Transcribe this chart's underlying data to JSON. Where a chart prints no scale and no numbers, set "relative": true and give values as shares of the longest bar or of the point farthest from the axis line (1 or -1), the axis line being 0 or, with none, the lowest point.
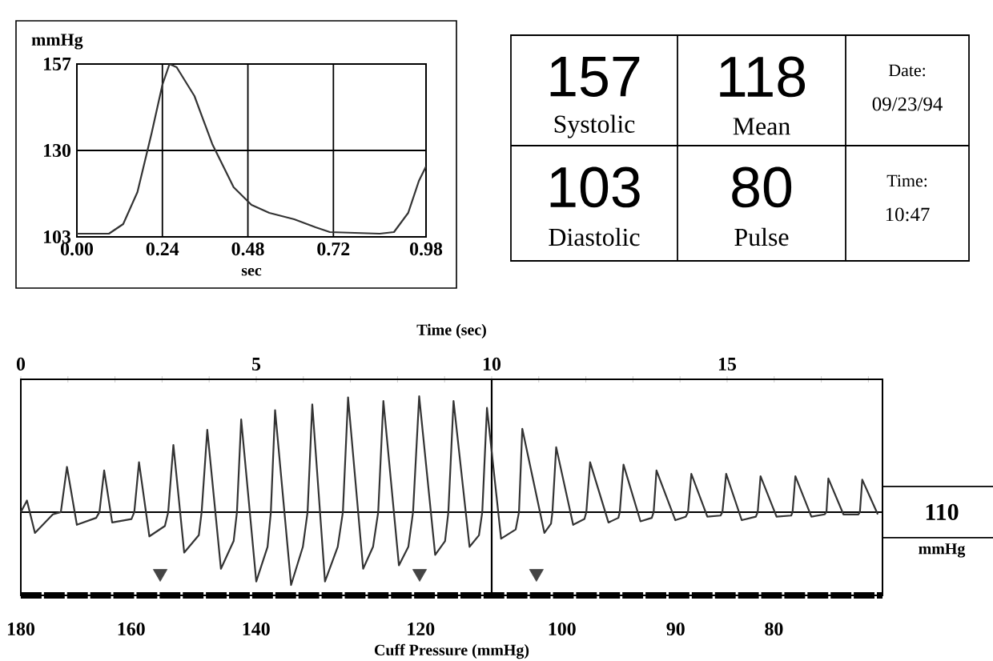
{
  "chart_data": [
    {
      "type": "line",
      "xlabel": "sec",
      "ylabel": "mmHg",
      "xlim": [
        0,
        0.98
      ],
      "ylim": [
        103,
        157
      ],
      "xticks": [
        {
          "value": 0,
          "label": "0.00"
        },
        0.24,
        0.48,
        0.72,
        0.98
      ],
      "yticks": [
        103,
        130,
        157
      ],
      "grid": true,
      "series": [
        {
          "color": "#333333",
          "x": [
            0,
            0.09,
            0.13,
            0.17,
            0.21,
            0.24,
            0.26,
            0.28,
            0.33,
            0.38,
            0.44,
            0.49,
            0.54,
            0.61,
            0.67,
            0.71,
            0.85,
            0.89,
            0.93,
            0.96,
            0.98
          ],
          "values": [
            104,
            104,
            107,
            117,
            135.5,
            150.5,
            157,
            156,
            147,
            132,
            118.5,
            113,
            110.5,
            108.5,
            106,
            104.5,
            104,
            104.5,
            110.5,
            120.5,
            125
          ]
        }
      ]
    },
    {
      "type": "other",
      "annotations": [
        "157",
        "Systolic",
        "118",
        "Mean",
        "Date:",
        "09/23/94",
        "103",
        "Diastolic",
        "80",
        "Pulse",
        "Time:",
        "10:47"
      ]
    },
    {
      "type": "line",
      "relative": true,
      "xlabel": "Time (sec)",
      "xlim": [
        0,
        18.3
      ],
      "xticks": [
        0,
        {
          "value": 1,
          "label": null
        },
        {
          "value": 2,
          "label": null
        },
        {
          "value": 3,
          "label": null
        },
        {
          "value": 4,
          "label": null
        },
        5,
        {
          "value": 6,
          "label": null
        },
        {
          "value": 7,
          "label": null
        },
        {
          "value": 8,
          "label": null
        },
        {
          "value": 9,
          "label": null
        },
        10,
        {
          "value": 11,
          "label": null
        },
        {
          "value": 12,
          "label": null
        },
        {
          "value": 13,
          "label": null
        },
        {
          "value": 14,
          "label": null
        },
        15,
        {
          "value": 16,
          "label": null
        },
        {
          "value": 17,
          "label": null
        },
        {
          "value": 18,
          "label": null
        }
      ],
      "ref_lines": [
        {
          "axis": "x",
          "value": 10
        },
        {
          "axis": "y",
          "value": 0
        }
      ],
      "annotations": [
        "110",
        "mmHg",
        "Cuff Pressure (mmHg)",
        "180",
        "160",
        "140",
        "120",
        "100",
        "90",
        "80"
      ],
      "series": [
        {
          "color": "#333333",
          "x": [
            0.0,
            0.13,
            0.3,
            0.68,
            0.85,
            0.98,
            1.19,
            1.6,
            1.67,
            1.77,
            1.94,
            2.35,
            2.41,
            2.51,
            2.73,
            3.06,
            3.13,
            3.24,
            3.47,
            3.78,
            3.84,
            3.96,
            4.25,
            4.52,
            4.59,
            4.68,
            5.0,
            5.24,
            5.31,
            5.4,
            5.74,
            5.99,
            6.09,
            6.19,
            6.46,
            6.73,
            6.84,
            6.95,
            7.27,
            7.48,
            7.59,
            7.7,
            8.03,
            8.23,
            8.33,
            8.46,
            8.8,
            9.01,
            9.08,
            9.19,
            9.53,
            9.73,
            9.8,
            9.9,
            10.2,
            10.51,
            10.58,
            10.65,
            11.12,
            11.26,
            11.29,
            11.37,
            11.73,
            11.97,
            12.01,
            12.09,
            12.48,
            12.69,
            12.72,
            12.8,
            13.16,
            13.4,
            13.44,
            13.5,
            13.9,
            14.12,
            14.17,
            14.24,
            14.58,
            14.86,
            14.9,
            14.98,
            15.31,
            15.61,
            15.65,
            15.71,
            16.05,
            16.36,
            16.39,
            16.45,
            16.79,
            17.07,
            17.11,
            17.15,
            17.47,
            17.79,
            17.82,
            17.87,
            18.2
          ],
          "values": [
            0,
            0.1,
            -0.18,
            -0.02,
            0,
            0.39,
            -0.11,
            -0.05,
            0,
            0.36,
            -0.09,
            -0.06,
            0,
            0.43,
            -0.21,
            -0.12,
            0,
            0.58,
            -0.35,
            -0.2,
            0,
            0.71,
            -0.49,
            -0.25,
            0,
            0.8,
            -0.6,
            -0.3,
            0,
            0.88,
            -0.63,
            -0.3,
            0,
            0.93,
            -0.6,
            -0.3,
            0,
            0.99,
            -0.49,
            -0.3,
            0,
            0.96,
            -0.46,
            -0.3,
            0,
            1.0,
            -0.37,
            -0.25,
            0,
            0.96,
            -0.3,
            -0.2,
            0,
            0.9,
            -0.23,
            -0.15,
            0,
            0.72,
            -0.18,
            -0.1,
            0,
            0.56,
            -0.11,
            -0.06,
            0,
            0.43,
            -0.09,
            -0.05,
            0,
            0.41,
            -0.08,
            -0.05,
            0,
            0.36,
            -0.07,
            -0.04,
            0,
            0.33,
            -0.04,
            -0.03,
            0,
            0.33,
            -0.07,
            -0.04,
            0,
            0.31,
            -0.04,
            -0.03,
            0,
            0.31,
            -0.04,
            -0.02,
            0,
            0.29,
            -0.02,
            -0.02,
            0,
            0.28,
            -0.02
          ]
        },
        {
          "type": "scatter",
          "marker": "triangle",
          "color": "#444444",
          "x": [
            2.96,
            8.47,
            10.95
          ],
          "values": [
            -0.53,
            -0.53,
            -0.53
          ]
        }
      ]
    }
  ]
}
